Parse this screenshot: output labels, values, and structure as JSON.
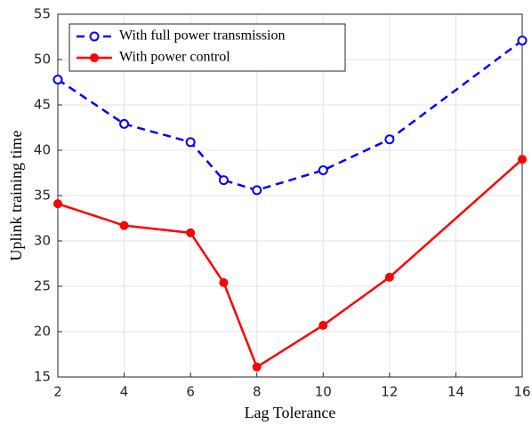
{
  "chart_data": {
    "type": "line",
    "xlabel": "Lag Tolerance",
    "ylabel": "Uplink training time",
    "x": [
      2,
      4,
      6,
      7,
      8,
      10,
      12,
      16
    ],
    "series": [
      {
        "name": "With full power transmission",
        "color": "#0000ff",
        "linestyle": "dashed",
        "marker": "open-circle",
        "values": [
          47.8,
          42.9,
          40.9,
          36.7,
          35.6,
          37.8,
          41.2,
          52.1
        ]
      },
      {
        "name": "With power control",
        "color": "#ff0000",
        "linestyle": "solid",
        "marker": "filled-circle",
        "values": [
          34.1,
          31.7,
          30.9,
          25.4,
          16.1,
          20.7,
          26.0,
          39.0
        ]
      }
    ],
    "xlim": [
      2,
      16
    ],
    "xticks": [
      2,
      4,
      6,
      8,
      10,
      12,
      14,
      16
    ],
    "ylim": [
      15,
      55
    ],
    "yticks": [
      15,
      20,
      25,
      30,
      35,
      40,
      45,
      50,
      55
    ],
    "grid": true,
    "legend": "upper left"
  }
}
